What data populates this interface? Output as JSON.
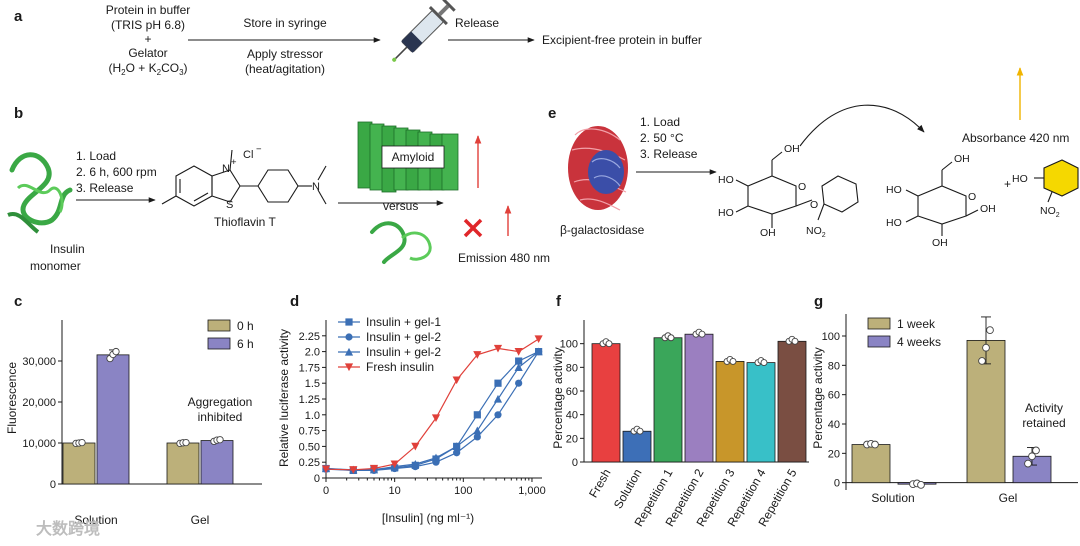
{
  "panel_a": {
    "label": "a",
    "left_lines": [
      "Protein in buffer",
      "(TRIS pH 6.8)",
      "+",
      "Gelator"
    ],
    "gelator_formula": {
      "prefix": "(H",
      "sub1": "2",
      "mid": "O + K",
      "sub2": "2",
      "mid2": "CO",
      "sub3": "3",
      "suffix": ")"
    },
    "store": "Store in syringe",
    "stress_lines": [
      "Apply stressor",
      "(heat/agitation)"
    ],
    "release": "Release",
    "result": "Excipient-free protein in buffer"
  },
  "panel_b": {
    "label": "b",
    "steps": [
      "1. Load",
      "2. 6 h, 600 rpm",
      "3. Release"
    ],
    "insulin_lines": [
      "Insulin",
      "monomer"
    ],
    "dye": "Thioflavin T",
    "cl": "Cl",
    "n_plus": "N",
    "n_right": "N",
    "s_atom": "S",
    "amyloid": "Amyloid",
    "versus": "versus",
    "emission": "Emission 480 nm"
  },
  "panel_e": {
    "label": "e",
    "steps": [
      "1. Load",
      "2. 50 °C",
      "3. Release"
    ],
    "enzyme": "β-galactosidase",
    "absorbance": "Absorbance 420 nm",
    "oh": "OH",
    "ho": "HO",
    "o": "O",
    "no2": "NO",
    "two": "2",
    "plus": "+"
  },
  "panel_c": {
    "label": "c",
    "chart_data": {
      "type": "bar",
      "categories": [
        "Solution",
        "Gel"
      ],
      "series": [
        {
          "name": "0 h",
          "values": [
            10000,
            10000
          ],
          "err": [
            300,
            300
          ],
          "points": [
            [
              9900,
              10000,
              10100
            ],
            [
              9900,
              10050,
              10100
            ]
          ]
        },
        {
          "name": "6 h",
          "values": [
            31500,
            10600
          ],
          "err": [
            1200,
            300
          ],
          "points": [
            [
              30600,
              31600,
              32300
            ],
            [
              10400,
              10700,
              10800
            ]
          ]
        }
      ],
      "ylabel": "Fluorescence",
      "ylim": [
        0,
        40000
      ],
      "yticks": [
        0,
        10000,
        20000,
        30000
      ],
      "ytick_labels": [
        "0",
        "10,000",
        "20,000",
        "30,000"
      ],
      "annotation_lines": [
        "Aggregation",
        "inhibited"
      ],
      "colors": [
        "#bcb07a",
        "#8a84c4"
      ]
    }
  },
  "panel_d": {
    "label": "d",
    "chart_data": {
      "type": "line",
      "xscale": "log",
      "xlim": [
        1,
        1400
      ],
      "ylim": [
        0,
        2.5
      ],
      "yticks": [
        0,
        0.25,
        0.5,
        0.75,
        1.0,
        1.25,
        1.5,
        1.75,
        2.0,
        2.25
      ],
      "ytick_labels": [
        "0",
        "0.25",
        "0.50",
        "0.75",
        "1.0",
        "1.25",
        "1.5",
        "1.75",
        "2.0",
        "2.25"
      ],
      "xticks": [
        1,
        10,
        100,
        1000
      ],
      "xtick_labels": [
        "0",
        "10",
        "100",
        "1,000"
      ],
      "xlabel": "[Insulin] (ng ml⁻¹)",
      "ylabel": "Relative luciferase activity",
      "series": [
        {
          "name": "Insulin + gel-1",
          "marker": "square",
          "color": "#3b6fb5",
          "x": [
            1,
            2.5,
            5,
            10,
            20,
            40,
            80,
            160,
            320,
            640,
            1250
          ],
          "y": [
            0.15,
            0.12,
            0.14,
            0.16,
            0.2,
            0.3,
            0.5,
            1.0,
            1.5,
            1.85,
            2.0
          ]
        },
        {
          "name": "Insulin + gel-2",
          "marker": "circle",
          "color": "#3b6fb5",
          "x": [
            1,
            2.5,
            5,
            10,
            20,
            40,
            80,
            160,
            320,
            640,
            1250
          ],
          "y": [
            0.14,
            0.12,
            0.12,
            0.15,
            0.18,
            0.25,
            0.4,
            0.65,
            1.0,
            1.5,
            2.0
          ]
        },
        {
          "name": "Insulin + gel-2",
          "marker": "triangle",
          "color": "#3b6fb5",
          "x": [
            1,
            2.5,
            5,
            10,
            20,
            40,
            80,
            160,
            320,
            640,
            1250
          ],
          "y": [
            0.15,
            0.13,
            0.13,
            0.18,
            0.22,
            0.32,
            0.5,
            0.75,
            1.25,
            1.75,
            2.0
          ]
        },
        {
          "name": "Fresh insulin",
          "marker": "triangle-down",
          "color": "#e0403a",
          "x": [
            1,
            2.5,
            5,
            10,
            20,
            40,
            80,
            160,
            320,
            640,
            1250
          ],
          "y": [
            0.14,
            0.13,
            0.15,
            0.22,
            0.5,
            0.95,
            1.55,
            1.95,
            2.05,
            2.0,
            2.2
          ]
        }
      ]
    }
  },
  "panel_f": {
    "label": "f",
    "chart_data": {
      "type": "bar",
      "categories": [
        "Fresh",
        "Solution",
        "Repetition 1",
        "Repetition 2",
        "Repetition 3",
        "Repetition 4",
        "Repetition 5"
      ],
      "values": [
        100,
        26,
        105,
        108,
        85,
        84,
        102
      ],
      "colors": [
        "#e84040",
        "#3d6fb7",
        "#3aa65a",
        "#9b7fc0",
        "#c8962a",
        "#38c0c8",
        "#7a4e42"
      ],
      "ylabel": "Percentage activity",
      "ylim": [
        0,
        120
      ],
      "yticks": [
        0,
        20,
        40,
        60,
        80,
        100
      ],
      "ytick_labels": [
        "0",
        "20",
        "40",
        "60",
        "80",
        "100"
      ]
    }
  },
  "panel_g": {
    "label": "g",
    "chart_data": {
      "type": "bar",
      "categories": [
        "Solution",
        "Gel"
      ],
      "series": [
        {
          "name": "1 week",
          "values": [
            26,
            97
          ],
          "err": [
            1,
            16
          ],
          "points": [
            [
              26,
              26.5,
              26
            ],
            [
              83,
              92,
              104
            ]
          ]
        },
        {
          "name": "4 weeks",
          "values": [
            -1,
            18
          ],
          "err": [
            1,
            6
          ],
          "points": [
            [
              -1,
              -0.5,
              -1.5
            ],
            [
              13,
              18,
              22
            ]
          ]
        }
      ],
      "ylabel": "Percentage activity",
      "ylim": [
        -5,
        115
      ],
      "yticks": [
        0,
        20,
        40,
        60,
        80,
        100
      ],
      "ytick_labels": [
        "0",
        "20",
        "40",
        "60",
        "80",
        "100"
      ],
      "annotation_lines": [
        "Activity",
        "retained"
      ],
      "colors": [
        "#bcb07a",
        "#8a84c4"
      ]
    }
  },
  "watermark": "大数跨境"
}
